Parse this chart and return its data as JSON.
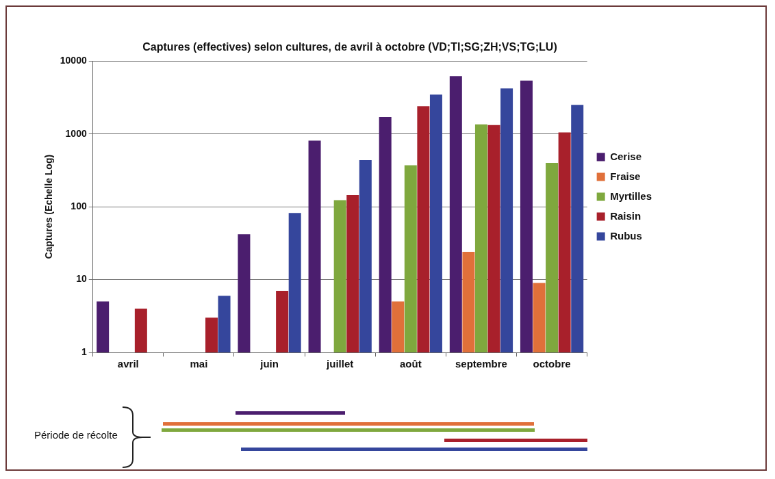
{
  "chart_data": {
    "type": "bar",
    "title": "Captures (effectives) selon cultures, de avril à octobre (VD;TI;SG;ZH;VS;TG;LU)",
    "ylabel": "Captures (Echelle Log)",
    "categories": [
      "avril",
      "mai",
      "juin",
      "juillet",
      "août",
      "septembre",
      "octobre"
    ],
    "series": [
      {
        "name": "Cerise",
        "color": "#4b1e6e",
        "values": [
          5,
          null,
          42,
          810,
          1700,
          6200,
          5400
        ]
      },
      {
        "name": "Fraise",
        "color": "#e0703a",
        "values": [
          null,
          null,
          null,
          null,
          5,
          24,
          9
        ]
      },
      {
        "name": "Myrtilles",
        "color": "#7fa83e",
        "values": [
          null,
          null,
          null,
          123,
          370,
          1350,
          400
        ]
      },
      {
        "name": "Raisin",
        "color": "#a8202b",
        "values": [
          4,
          3,
          7,
          145,
          2400,
          1320,
          1050
        ]
      },
      {
        "name": "Rubus",
        "color": "#35469c",
        "values": [
          null,
          6,
          82,
          437,
          3470,
          4200,
          2500
        ]
      }
    ],
    "log": "y",
    "ylim": [
      1,
      10000
    ],
    "yticks": [
      1,
      10,
      100,
      1000,
      10000
    ],
    "grid": "y",
    "legend": "right",
    "annotations": [
      "Période de récolte"
    ]
  }
}
